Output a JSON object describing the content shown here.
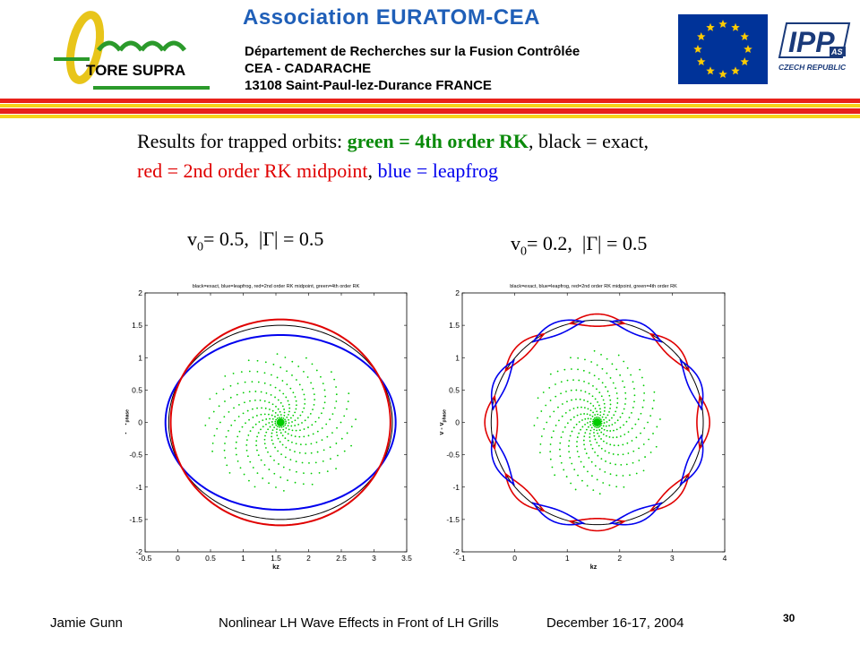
{
  "header": {
    "title": "Association  EURATOM-CEA",
    "line1": "Département de Recherches sur la Fusion Contrôlée",
    "line2": "CEA - CADARACHE",
    "line3": "13108 Saint-Paul-lez-Durance   FRANCE",
    "tore_supra": "TORE SUPRA",
    "ipp_text": "IPP",
    "ipp_as": "AS",
    "ipp_country": "CZECH REPUBLIC",
    "colors": {
      "title_blue": "#1f5fb8",
      "stripe_red": "#e8201a",
      "stripe_yellow": "#f6d21a",
      "eu_blue": "#003399",
      "eu_gold": "#ffcc00"
    }
  },
  "headline": {
    "part1": "Results for trapped orbits: ",
    "green_part": "green = 4th order RK",
    "part2": ", black = exact,",
    "red_part": "red = 2nd order RK midpoint",
    "part3": ", ",
    "blue_part": "blue = leapfrog"
  },
  "plot_labels": [
    {
      "v0": "0.5",
      "gamma": "0.5"
    },
    {
      "v0": "0.2",
      "gamma": "0.5"
    }
  ],
  "chart_data": [
    {
      "type": "line",
      "title": "black=exact, blue=leapfrog, red=2nd order RK midpoint, green=4th order RK",
      "xlabel": "kz",
      "ylabel": "v - v",
      "ylabel_sub": "phase",
      "xlim": [
        -0.5,
        3.5
      ],
      "ylim": [
        -2,
        2
      ],
      "xticks": [
        "-0.5",
        "0",
        "0.5",
        "1",
        "1.5",
        "2",
        "2.5",
        "3",
        "3.5"
      ],
      "yticks": [
        "2",
        "1.5",
        "1",
        "0.5",
        "0",
        "-0.5",
        "-1",
        "-1.5",
        "-2"
      ],
      "center": [
        1.571,
        0
      ],
      "series": [
        {
          "name": "exact",
          "color": "#000000",
          "shape": "ellipse",
          "rx": 1.71,
          "ry": 1.5
        },
        {
          "name": "leapfrog",
          "color": "#0000ee",
          "shape": "ellipse",
          "rx": 1.76,
          "ry": 1.35
        },
        {
          "name": "2nd order RK midpoint",
          "color": "#e00000",
          "shape": "ellipse",
          "rx": 1.68,
          "ry": 1.59
        },
        {
          "name": "4th order RK",
          "color": "#00cc00",
          "shape": "spiral-dots",
          "radius": 1.15
        }
      ]
    },
    {
      "type": "line",
      "title": "black=exact, blue=leapfrog, red=2nd order RK midpoint, green=4th order RK",
      "xlabel": "kz",
      "ylabel": "v - v",
      "ylabel_sub": "phase",
      "xlim": [
        -1,
        4
      ],
      "ylim": [
        -2,
        2
      ],
      "xticks": [
        "-1",
        "0",
        "1",
        "2",
        "3",
        "4"
      ],
      "yticks": [
        "2",
        "1.5",
        "1",
        "0.5",
        "0",
        "-0.5",
        "-1",
        "-1.5",
        "-2"
      ],
      "center": [
        1.571,
        0
      ],
      "series": [
        {
          "name": "exact",
          "color": "#000000",
          "shape": "ellipse",
          "rx": 2.02,
          "ry": 1.58
        },
        {
          "name": "2nd order RK midpoint",
          "color": "#e00000",
          "shape": "lobed-ring",
          "rx": 2.02,
          "ry": 1.58,
          "lobes": 8,
          "phase": 0
        },
        {
          "name": "leapfrog",
          "color": "#0000ee",
          "shape": "lobed-ring",
          "rx": 2.0,
          "ry": 1.57,
          "lobes": 8,
          "phase": 22.5
        },
        {
          "name": "4th order RK",
          "color": "#00cc00",
          "shape": "spiral-dots",
          "radius": 1.2
        }
      ]
    }
  ],
  "footer": {
    "author": "Jamie Gunn",
    "talk": "Nonlinear LH Wave Effects in Front of LH Grills",
    "date": "December 16-17, 2004",
    "page": "30"
  }
}
